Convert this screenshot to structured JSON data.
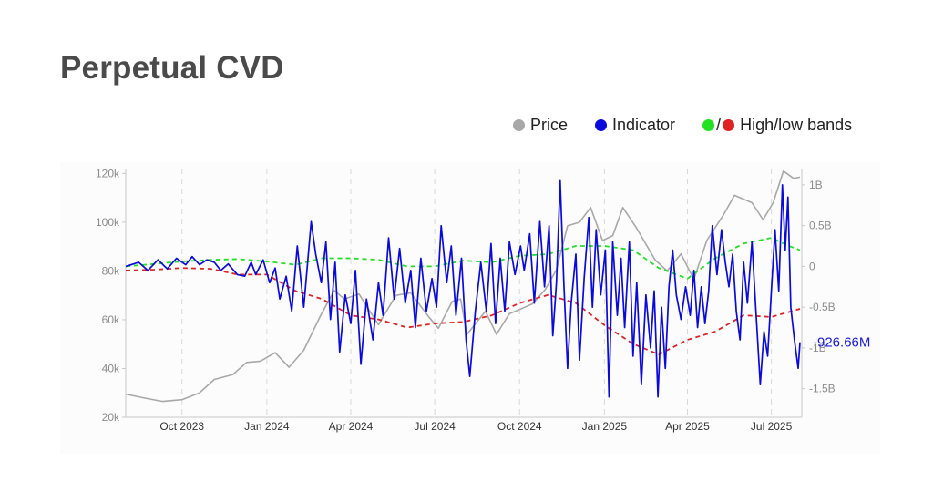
{
  "page": {
    "title": "Perpetual CVD"
  },
  "legend": {
    "price_label": "Price",
    "indicator_label": "Indicator",
    "bands_label": "High/low bands",
    "bands_sep": "/"
  },
  "colors": {
    "price": "#a8a8a8",
    "indicator": "#0a0adc",
    "high_band": "#22e022",
    "low_band": "#e02222",
    "title": "#4a4a4a"
  },
  "chart_data": {
    "type": "line",
    "x_axis": {
      "ticks": [
        "Oct 2023",
        "Jan 2024",
        "Apr 2024",
        "Jul 2024",
        "Oct 2024",
        "Jan 2025",
        "Apr 2025",
        "Jul 2025"
      ],
      "range": [
        "Aug 2023",
        "Aug 2025"
      ],
      "gridlines": "dashed vertical"
    },
    "y_left": {
      "label": "Price",
      "ticks": [
        "20k",
        "40k",
        "60k",
        "80k",
        "100k",
        "120k"
      ],
      "range": [
        20000,
        122000
      ]
    },
    "y_right": {
      "label": "Indicator",
      "ticks": [
        "1B",
        "0.5B",
        "0",
        "-0.5B",
        "-1B",
        "-1.5B"
      ],
      "range": [
        -1.85,
        1.2
      ],
      "unit": "B"
    },
    "last_value_label": "-926.66M",
    "series": [
      {
        "name": "Price",
        "axis": "left",
        "points": [
          [
            "2023-08-01",
            29500
          ],
          [
            "2023-08-20",
            28000
          ],
          [
            "2023-09-10",
            26500
          ],
          [
            "2023-10-01",
            27200
          ],
          [
            "2023-10-20",
            30000
          ],
          [
            "2023-11-05",
            35500
          ],
          [
            "2023-11-25",
            37500
          ],
          [
            "2023-12-10",
            42500
          ],
          [
            "2023-12-25",
            43000
          ],
          [
            "2024-01-10",
            46500
          ],
          [
            "2024-01-25",
            40500
          ],
          [
            "2024-02-10",
            47500
          ],
          [
            "2024-02-28",
            61500
          ],
          [
            "2024-03-14",
            72000
          ],
          [
            "2024-03-25",
            68500
          ],
          [
            "2024-04-10",
            70500
          ],
          [
            "2024-04-20",
            64500
          ],
          [
            "2024-05-01",
            58000
          ],
          [
            "2024-05-20",
            70000
          ],
          [
            "2024-06-05",
            71000
          ],
          [
            "2024-06-25",
            61000
          ],
          [
            "2024-07-05",
            56500
          ],
          [
            "2024-07-20",
            67500
          ],
          [
            "2024-07-29",
            68500
          ],
          [
            "2024-08-05",
            54000
          ],
          [
            "2024-08-25",
            63500
          ],
          [
            "2024-09-06",
            54000
          ],
          [
            "2024-09-20",
            62500
          ],
          [
            "2024-09-30",
            64000
          ],
          [
            "2024-10-15",
            66500
          ],
          [
            "2024-10-29",
            72500
          ],
          [
            "2024-11-10",
            80500
          ],
          [
            "2024-11-22",
            98500
          ],
          [
            "2024-12-05",
            100000
          ],
          [
            "2024-12-17",
            106000
          ],
          [
            "2024-12-30",
            92500
          ],
          [
            "2025-01-10",
            94500
          ],
          [
            "2025-01-21",
            106000
          ],
          [
            "2025-02-05",
            97500
          ],
          [
            "2025-02-25",
            84500
          ],
          [
            "2025-03-10",
            80000
          ],
          [
            "2025-03-25",
            87000
          ],
          [
            "2025-04-08",
            76500
          ],
          [
            "2025-04-22",
            92500
          ],
          [
            "2025-05-10",
            103000
          ],
          [
            "2025-05-22",
            111000
          ],
          [
            "2025-06-10",
            108000
          ],
          [
            "2025-06-22",
            101000
          ],
          [
            "2025-07-03",
            108000
          ],
          [
            "2025-07-14",
            121000
          ],
          [
            "2025-07-25",
            118000
          ],
          [
            "2025-08-01",
            118500
          ]
        ]
      },
      {
        "name": "Indicator",
        "axis": "right",
        "points": [
          [
            "2023-08-01",
            0
          ],
          [
            "2023-08-15",
            0.05
          ],
          [
            "2023-08-25",
            -0.05
          ],
          [
            "2023-09-05",
            0.08
          ],
          [
            "2023-09-15",
            -0.03
          ],
          [
            "2023-09-25",
            0.1
          ],
          [
            "2023-10-05",
            0.02
          ],
          [
            "2023-10-12",
            0.12
          ],
          [
            "2023-10-20",
            0.02
          ],
          [
            "2023-10-28",
            0.08
          ],
          [
            "2023-11-05",
            0.05
          ],
          [
            "2023-11-12",
            -0.05
          ],
          [
            "2023-11-20",
            0.03
          ],
          [
            "2023-11-30",
            -0.1
          ],
          [
            "2023-12-08",
            -0.12
          ],
          [
            "2023-12-15",
            0.05
          ],
          [
            "2023-12-20",
            -0.1
          ],
          [
            "2023-12-28",
            0.08
          ],
          [
            "2024-01-04",
            -0.2
          ],
          [
            "2024-01-10",
            -0.02
          ],
          [
            "2024-01-15",
            -0.4
          ],
          [
            "2024-01-22",
            -0.12
          ],
          [
            "2024-01-28",
            -0.55
          ],
          [
            "2024-02-03",
            0.25
          ],
          [
            "2024-02-10",
            -0.5
          ],
          [
            "2024-02-18",
            0.55
          ],
          [
            "2024-02-23",
            0.15
          ],
          [
            "2024-02-29",
            -0.2
          ],
          [
            "2024-03-05",
            0.3
          ],
          [
            "2024-03-10",
            -0.65
          ],
          [
            "2024-03-15",
            0.05
          ],
          [
            "2024-03-20",
            -1.05
          ],
          [
            "2024-03-26",
            -0.35
          ],
          [
            "2024-04-01",
            -0.7
          ],
          [
            "2024-04-06",
            -0.05
          ],
          [
            "2024-04-12",
            -1.2
          ],
          [
            "2024-04-18",
            -0.4
          ],
          [
            "2024-04-25",
            -0.9
          ],
          [
            "2024-05-01",
            -0.2
          ],
          [
            "2024-05-06",
            -0.6
          ],
          [
            "2024-05-12",
            0.35
          ],
          [
            "2024-05-18",
            -0.4
          ],
          [
            "2024-05-24",
            0.22
          ],
          [
            "2024-05-30",
            -0.45
          ],
          [
            "2024-06-05",
            -0.05
          ],
          [
            "2024-06-10",
            -0.75
          ],
          [
            "2024-06-16",
            0.1
          ],
          [
            "2024-06-22",
            -0.55
          ],
          [
            "2024-06-28",
            -0.15
          ],
          [
            "2024-07-03",
            -0.5
          ],
          [
            "2024-07-08",
            0.5
          ],
          [
            "2024-07-14",
            -0.2
          ],
          [
            "2024-07-19",
            0.25
          ],
          [
            "2024-07-24",
            -0.6
          ],
          [
            "2024-07-30",
            0.1
          ],
          [
            "2024-08-04",
            -0.9
          ],
          [
            "2024-08-08",
            -1.35
          ],
          [
            "2024-08-14",
            -0.55
          ],
          [
            "2024-08-20",
            0.05
          ],
          [
            "2024-08-26",
            -0.55
          ],
          [
            "2024-08-31",
            0.28
          ],
          [
            "2024-09-05",
            -0.7
          ],
          [
            "2024-09-10",
            0.1
          ],
          [
            "2024-09-15",
            -0.55
          ],
          [
            "2024-09-20",
            0.3
          ],
          [
            "2024-09-26",
            -0.1
          ],
          [
            "2024-10-02",
            0.25
          ],
          [
            "2024-10-06",
            -0.05
          ],
          [
            "2024-10-12",
            0.4
          ],
          [
            "2024-10-17",
            -0.45
          ],
          [
            "2024-10-23",
            0.55
          ],
          [
            "2024-10-28",
            -0.25
          ],
          [
            "2024-11-02",
            0.5
          ],
          [
            "2024-11-06",
            -0.85
          ],
          [
            "2024-11-10",
            -0.2
          ],
          [
            "2024-11-14",
            1.05
          ],
          [
            "2024-11-18",
            -0.2
          ],
          [
            "2024-11-22",
            -1.25
          ],
          [
            "2024-11-26",
            -0.45
          ],
          [
            "2024-12-01",
            0.15
          ],
          [
            "2024-12-05",
            -1.15
          ],
          [
            "2024-12-10",
            -0.15
          ],
          [
            "2024-12-15",
            0.6
          ],
          [
            "2024-12-19",
            -0.5
          ],
          [
            "2024-12-23",
            0.45
          ],
          [
            "2024-12-28",
            -0.35
          ],
          [
            "2025-01-02",
            0.2
          ],
          [
            "2025-01-06",
            -1.6
          ],
          [
            "2025-01-10",
            0.3
          ],
          [
            "2025-01-15",
            -0.6
          ],
          [
            "2025-01-19",
            0.1
          ],
          [
            "2025-01-23",
            -0.75
          ],
          [
            "2025-01-28",
            0.3
          ],
          [
            "2025-02-01",
            -1.1
          ],
          [
            "2025-02-05",
            -0.2
          ],
          [
            "2025-02-10",
            -1.45
          ],
          [
            "2025-02-15",
            -0.35
          ],
          [
            "2025-02-20",
            -1.0
          ],
          [
            "2025-02-24",
            -0.3
          ],
          [
            "2025-02-28",
            -1.6
          ],
          [
            "2025-03-04",
            -0.5
          ],
          [
            "2025-03-08",
            -1.25
          ],
          [
            "2025-03-12",
            -0.25
          ],
          [
            "2025-03-16",
            0.2
          ],
          [
            "2025-03-20",
            -0.35
          ],
          [
            "2025-03-25",
            -0.65
          ],
          [
            "2025-03-30",
            -0.25
          ],
          [
            "2025-04-04",
            -0.6
          ],
          [
            "2025-04-08",
            -0.05
          ],
          [
            "2025-04-12",
            -0.75
          ],
          [
            "2025-04-16",
            -0.25
          ],
          [
            "2025-04-20",
            -0.7
          ],
          [
            "2025-04-24",
            -0.3
          ],
          [
            "2025-04-28",
            0.5
          ],
          [
            "2025-05-03",
            -0.1
          ],
          [
            "2025-05-08",
            0.45
          ],
          [
            "2025-05-12",
            0.05
          ],
          [
            "2025-05-16",
            -0.25
          ],
          [
            "2025-05-20",
            0.15
          ],
          [
            "2025-05-24",
            -0.55
          ],
          [
            "2025-05-28",
            -0.9
          ],
          [
            "2025-06-01",
            0.05
          ],
          [
            "2025-06-05",
            -0.45
          ],
          [
            "2025-06-10",
            0.3
          ],
          [
            "2025-06-14",
            -0.5
          ],
          [
            "2025-06-19",
            -1.45
          ],
          [
            "2025-06-23",
            -0.8
          ],
          [
            "2025-06-27",
            -1.1
          ],
          [
            "2025-07-01",
            -0.3
          ],
          [
            "2025-07-05",
            0.45
          ],
          [
            "2025-07-09",
            -0.3
          ],
          [
            "2025-07-13",
            1.0
          ],
          [
            "2025-07-16",
            0.2
          ],
          [
            "2025-07-19",
            0.85
          ],
          [
            "2025-07-22",
            -0.5
          ],
          [
            "2025-07-26",
            -0.9
          ],
          [
            "2025-07-30",
            -1.25
          ],
          [
            "2025-08-01",
            -0.93
          ]
        ]
      },
      {
        "name": "High band",
        "axis": "right",
        "style": "dashed",
        "points": [
          [
            "2023-08-01",
            0.0
          ],
          [
            "2023-09-01",
            0.03
          ],
          [
            "2023-10-01",
            0.06
          ],
          [
            "2023-11-01",
            0.08
          ],
          [
            "2023-12-01",
            0.09
          ],
          [
            "2024-01-01",
            0.06
          ],
          [
            "2024-02-01",
            0.02
          ],
          [
            "2024-03-01",
            0.1
          ],
          [
            "2024-04-01",
            0.1
          ],
          [
            "2024-05-01",
            0.08
          ],
          [
            "2024-06-01",
            0.0
          ],
          [
            "2024-07-01",
            0.0
          ],
          [
            "2024-08-01",
            0.07
          ],
          [
            "2024-09-01",
            0.05
          ],
          [
            "2024-10-01",
            0.13
          ],
          [
            "2024-11-01",
            0.15
          ],
          [
            "2024-12-01",
            0.25
          ],
          [
            "2025-01-01",
            0.25
          ],
          [
            "2025-02-01",
            0.2
          ],
          [
            "2025-03-01",
            -0.02
          ],
          [
            "2025-04-01",
            -0.15
          ],
          [
            "2025-05-01",
            0.1
          ],
          [
            "2025-06-01",
            0.28
          ],
          [
            "2025-07-01",
            0.35
          ],
          [
            "2025-07-20",
            0.25
          ],
          [
            "2025-08-01",
            0.2
          ]
        ]
      },
      {
        "name": "Low band",
        "axis": "right",
        "style": "dashed",
        "points": [
          [
            "2023-08-01",
            -0.05
          ],
          [
            "2023-09-01",
            -0.04
          ],
          [
            "2023-10-01",
            -0.02
          ],
          [
            "2023-11-01",
            -0.03
          ],
          [
            "2023-12-01",
            -0.1
          ],
          [
            "2024-01-01",
            -0.1
          ],
          [
            "2024-02-01",
            -0.3
          ],
          [
            "2024-03-01",
            -0.4
          ],
          [
            "2024-04-01",
            -0.6
          ],
          [
            "2024-05-01",
            -0.65
          ],
          [
            "2024-06-01",
            -0.75
          ],
          [
            "2024-07-01",
            -0.7
          ],
          [
            "2024-08-01",
            -0.68
          ],
          [
            "2024-09-01",
            -0.6
          ],
          [
            "2024-10-01",
            -0.45
          ],
          [
            "2024-11-01",
            -0.35
          ],
          [
            "2024-12-01",
            -0.45
          ],
          [
            "2025-01-01",
            -0.72
          ],
          [
            "2025-02-01",
            -0.95
          ],
          [
            "2025-03-01",
            -1.08
          ],
          [
            "2025-04-01",
            -0.9
          ],
          [
            "2025-05-01",
            -0.8
          ],
          [
            "2025-06-01",
            -0.6
          ],
          [
            "2025-07-01",
            -0.62
          ],
          [
            "2025-08-01",
            -0.52
          ]
        ]
      }
    ]
  }
}
